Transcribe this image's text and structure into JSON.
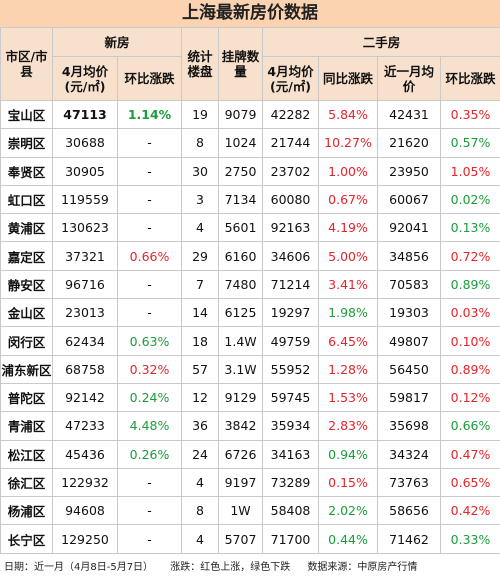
{
  "title": "上海最新房价数据",
  "header": {
    "district": "市区/市县",
    "new_house": "新房",
    "stats": "统计楼盘",
    "listings": "挂牌数量",
    "second_hand": "二手房",
    "new_cols": [
      "4月均价(元/㎡)",
      "环比涨跌"
    ],
    "second_cols": [
      "4月均价(元/㎡)",
      "同比涨跌",
      "近一月均价",
      "环比涨跌"
    ]
  },
  "colors": {
    "red": "#e5242a",
    "green": "#1a9e3a"
  },
  "table": {
    "rows": [
      {
        "cells": [
          "宝山区",
          "47113",
          "1.14%",
          "19",
          "9079",
          "42282",
          "5.84%",
          "42431",
          "0.35%"
        ],
        "trend": [
          "green",
          "red",
          "red"
        ]
      },
      {
        "cells": [
          "崇明区",
          "30688",
          "-",
          "8",
          "1024",
          "21744",
          "10.27%",
          "21620",
          "0.57%"
        ],
        "trend": [
          null,
          "red",
          "green"
        ]
      },
      {
        "cells": [
          "奉贤区",
          "30905",
          "-",
          "30",
          "2750",
          "23702",
          "1.00%",
          "23950",
          "1.05%"
        ],
        "trend": [
          null,
          "red",
          "red"
        ]
      },
      {
        "cells": [
          "虹口区",
          "119559",
          "-",
          "3",
          "7134",
          "60080",
          "0.67%",
          "60067",
          "0.02%"
        ],
        "trend": [
          null,
          "red",
          "green"
        ]
      },
      {
        "cells": [
          "黄浦区",
          "130623",
          "-",
          "4",
          "5601",
          "92163",
          "4.19%",
          "92041",
          "0.13%"
        ],
        "trend": [
          null,
          "red",
          "green"
        ]
      },
      {
        "cells": [
          "嘉定区",
          "37321",
          "0.66%",
          "29",
          "6160",
          "34606",
          "5.00%",
          "34856",
          "0.72%"
        ],
        "trend": [
          "red",
          "red",
          "red"
        ]
      },
      {
        "cells": [
          "静安区",
          "96716",
          "-",
          "7",
          "7480",
          "71214",
          "3.41%",
          "70583",
          "0.89%"
        ],
        "trend": [
          null,
          "red",
          "green"
        ]
      },
      {
        "cells": [
          "金山区",
          "23013",
          "-",
          "14",
          "6125",
          "19297",
          "1.98%",
          "19303",
          "0.03%"
        ],
        "trend": [
          null,
          "green",
          "red"
        ]
      },
      {
        "cells": [
          "闵行区",
          "62434",
          "0.63%",
          "18",
          "1.4W",
          "49759",
          "6.45%",
          "49807",
          "0.10%"
        ],
        "trend": [
          "green",
          "red",
          "red"
        ]
      },
      {
        "cells": [
          "浦东新区",
          "68758",
          "0.32%",
          "57",
          "3.1W",
          "55952",
          "1.28%",
          "56450",
          "0.89%"
        ],
        "trend": [
          "red",
          "red",
          "red"
        ]
      },
      {
        "cells": [
          "普陀区",
          "92142",
          "0.24%",
          "12",
          "9129",
          "59745",
          "1.53%",
          "59817",
          "0.12%"
        ],
        "trend": [
          "green",
          "red",
          "red"
        ]
      },
      {
        "cells": [
          "青浦区",
          "47233",
          "4.48%",
          "36",
          "3842",
          "35934",
          "2.83%",
          "35698",
          "0.66%"
        ],
        "trend": [
          "green",
          "red",
          "green"
        ]
      },
      {
        "cells": [
          "松江区",
          "45436",
          "0.26%",
          "24",
          "6726",
          "34163",
          "0.94%",
          "34324",
          "0.47%"
        ],
        "trend": [
          "green",
          "green",
          "red"
        ]
      },
      {
        "cells": [
          "徐汇区",
          "122932",
          "-",
          "4",
          "9197",
          "73289",
          "0.15%",
          "73763",
          "0.65%"
        ],
        "trend": [
          null,
          "red",
          "red"
        ]
      },
      {
        "cells": [
          "杨浦区",
          "94608",
          "-",
          "8",
          "1W",
          "58408",
          "2.02%",
          "58656",
          "0.42%"
        ],
        "trend": [
          null,
          "green",
          "red"
        ]
      },
      {
        "cells": [
          "长宁区",
          "129250",
          "-",
          "4",
          "5707",
          "71700",
          "0.44%",
          "71462",
          "0.33%"
        ],
        "trend": [
          null,
          "green",
          "green"
        ]
      }
    ]
  },
  "footer": {
    "date": "日期：近一月（4月8日-5月7日）",
    "legend": "涨跌：红色上涨，绿色下跌",
    "source": "数据来源：中原房产行情"
  }
}
